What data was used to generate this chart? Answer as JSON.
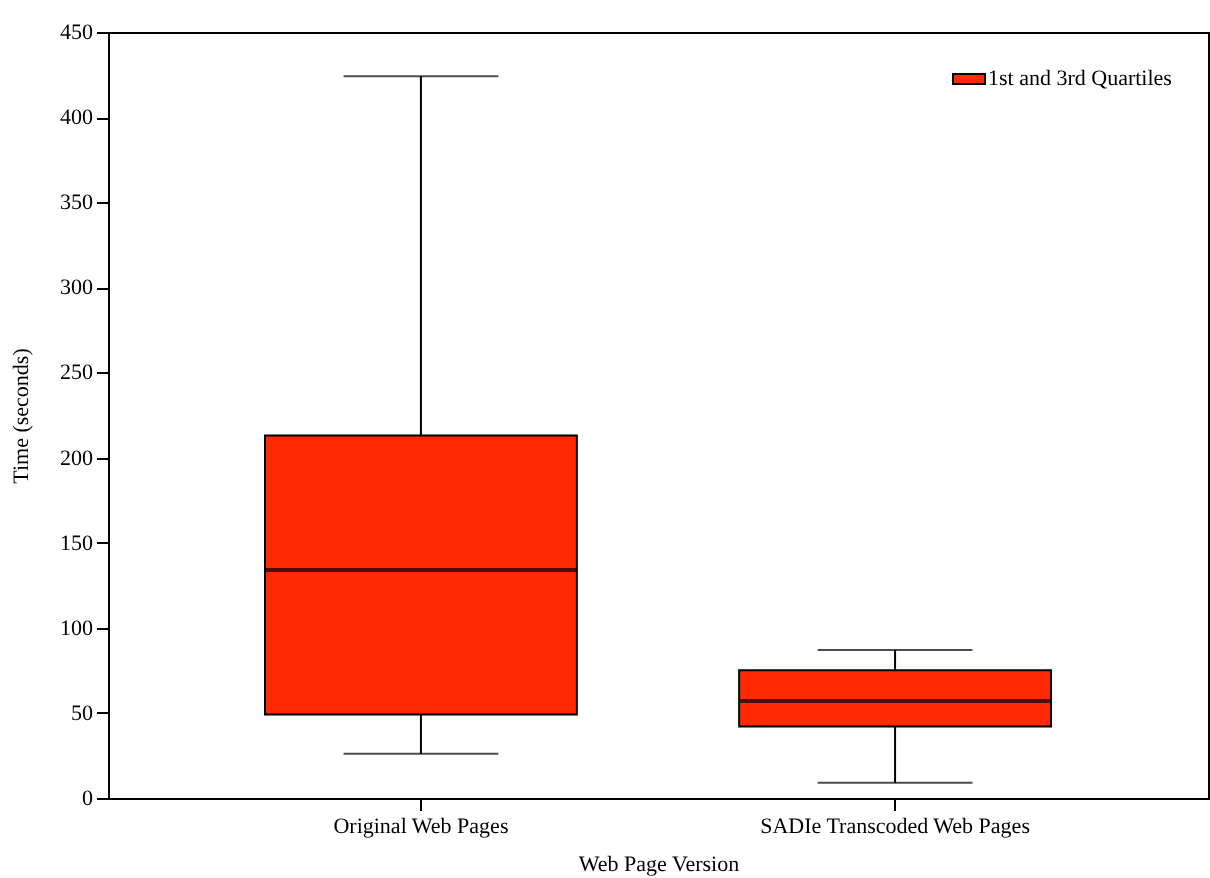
{
  "chart_data": {
    "type": "box",
    "xlabel": "Web Page Version",
    "ylabel": "Time (seconds)",
    "categories": [
      "Original Web Pages",
      "SADIe Transcoded Web Pages"
    ],
    "series": [
      {
        "name": "1st and 3rd Quartiles",
        "color": "#ff2a00",
        "boxes": [
          {
            "low": 26,
            "q1": 49,
            "median": 134,
            "q3": 213,
            "high": 424
          },
          {
            "low": 9,
            "q1": 42,
            "median": 57,
            "q3": 75,
            "high": 87
          }
        ]
      }
    ],
    "ylim": [
      0,
      450
    ],
    "yticks": [
      0,
      50,
      100,
      150,
      200,
      250,
      300,
      350,
      400,
      450
    ],
    "legend": "top right"
  }
}
